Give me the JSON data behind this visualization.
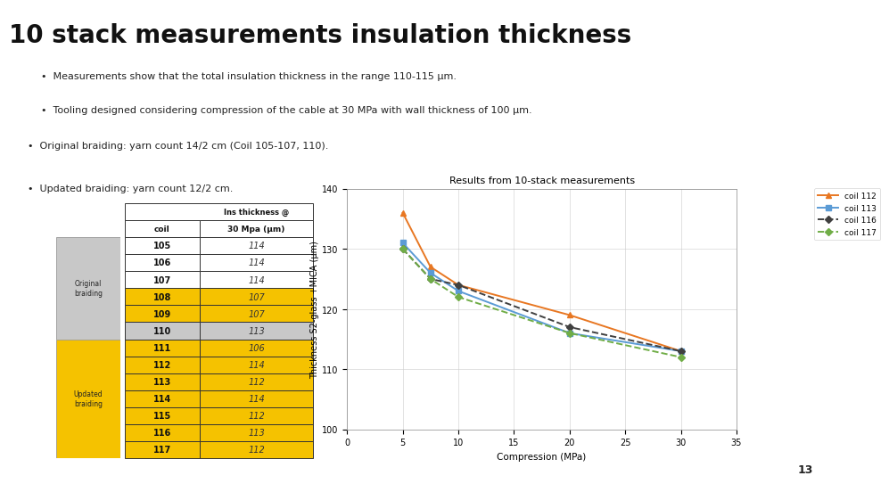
{
  "title": "10 stack measurements insulation thickness",
  "bullets1": [
    "Measurements show that the total insulation thickness in the range 110-115 μm.",
    "Tooling designed considering compression of the cable at 30 MPa with wall thickness of 100 μm."
  ],
  "bullets2": [
    "Original braiding: yarn count 14/2 cm (Coil 105-107, 110).",
    "Updated braiding: yarn count 12/2 cm."
  ],
  "table": {
    "rows": [
      [
        105,
        114,
        "white"
      ],
      [
        106,
        114,
        "white"
      ],
      [
        107,
        114,
        "white"
      ],
      [
        108,
        107,
        "yellow"
      ],
      [
        109,
        107,
        "yellow"
      ],
      [
        110,
        113,
        "gray"
      ],
      [
        111,
        106,
        "yellow"
      ],
      [
        112,
        114,
        "yellow"
      ],
      [
        113,
        112,
        "yellow"
      ],
      [
        114,
        114,
        "yellow"
      ],
      [
        115,
        112,
        "yellow"
      ],
      [
        116,
        113,
        "yellow"
      ],
      [
        117,
        112,
        "yellow"
      ]
    ]
  },
  "chart": {
    "title": "Results from 10-stack measurements",
    "xlabel": "Compression (MPa)",
    "ylabel": "Thickness S2-glass +MICA (μm)",
    "xlim": [
      0,
      35
    ],
    "ylim": [
      100,
      140
    ],
    "xticks": [
      0,
      5,
      10,
      15,
      20,
      25,
      30,
      35
    ],
    "yticks": [
      100,
      110,
      120,
      130,
      140
    ],
    "series": [
      {
        "label": "coil 112",
        "x": [
          5,
          7.5,
          10,
          20,
          30
        ],
        "y": [
          136,
          127,
          124,
          119,
          113
        ],
        "color": "#E87722",
        "marker": "^",
        "dashed": false
      },
      {
        "label": "coil 113",
        "x": [
          5,
          7.5,
          10,
          20,
          30
        ],
        "y": [
          131,
          126,
          123,
          116,
          113
        ],
        "color": "#5B9BD5",
        "marker": "s",
        "dashed": false
      },
      {
        "label": "coil 116",
        "x": [
          5,
          7.5,
          10,
          20,
          30
        ],
        "y": [
          130,
          125,
          124,
          117,
          113
        ],
        "color": "#404040",
        "marker": "D",
        "dashed": true
      },
      {
        "label": "coil 117",
        "x": [
          5,
          7.5,
          10,
          20,
          30
        ],
        "y": [
          130,
          125,
          122,
          116,
          112
        ],
        "color": "#70AD47",
        "marker": "D",
        "dashed": true
      }
    ]
  },
  "bg_color": "#FFFFFF",
  "title_fontsize": 20,
  "bullet_fontsize": 8,
  "table_yellow": "#F5C200",
  "table_gray": "#C8C8C8",
  "table_white": "#FFFFFF",
  "orig_label_color": "#C8C8C8",
  "upd_label_color": "#F5C200",
  "page_number": "13"
}
